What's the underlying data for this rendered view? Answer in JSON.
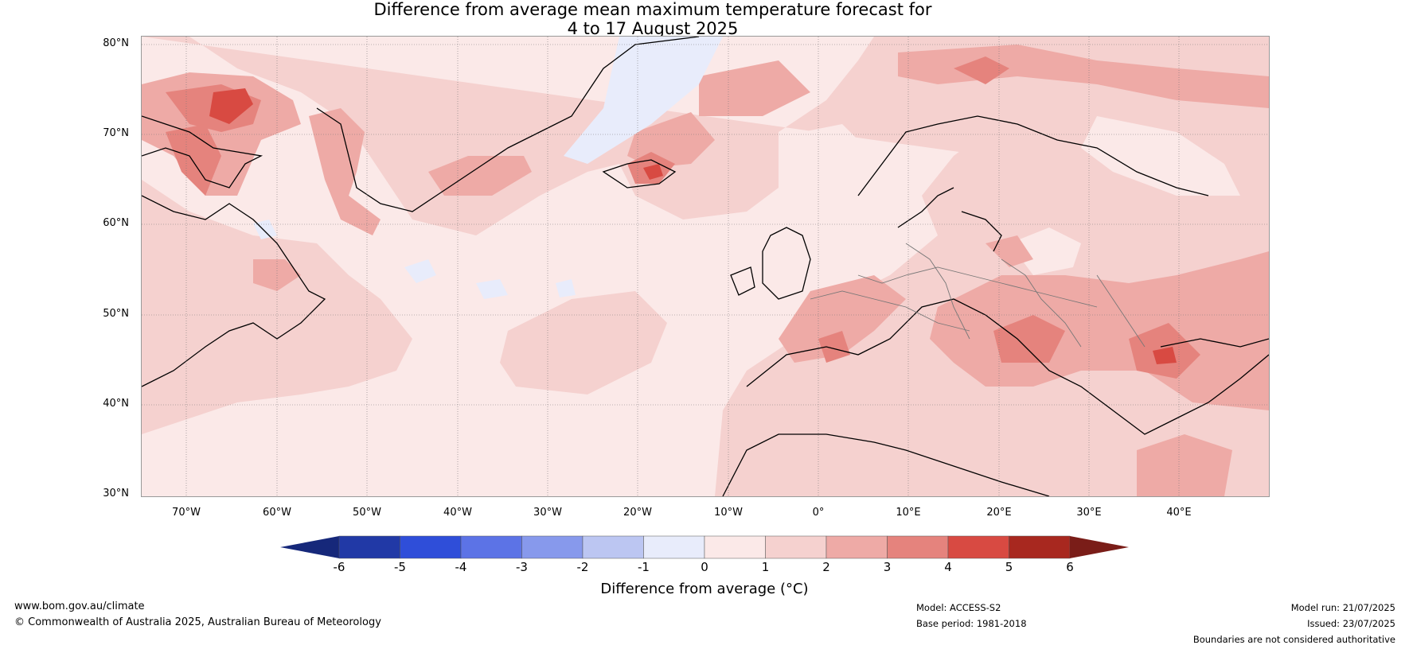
{
  "title_line1": "Difference from average mean maximum temperature forecast for",
  "title_line2": "4 to 17 August 2025",
  "lat_labels": [
    "80°N",
    "70°N",
    "60°N",
    "50°N",
    "40°N",
    "30°N"
  ],
  "lon_labels": [
    "70°W",
    "60°W",
    "50°W",
    "40°W",
    "30°W",
    "20°W",
    "10°W",
    "0°",
    "10°E",
    "20°E",
    "30°E",
    "40°E"
  ],
  "colorbar": {
    "ticks": [
      "-6",
      "-5",
      "-4",
      "-3",
      "-2",
      "-1",
      "0",
      "1",
      "2",
      "3",
      "4",
      "5",
      "6"
    ],
    "label": "Difference from average (°C)",
    "low_extend_color": "#16287a",
    "high_extend_color": "#7a1d18",
    "colors": [
      "#2139a6",
      "#2f4ed9",
      "#5c73e6",
      "#8799ec",
      "#bcc6f2",
      "#e8ecfb",
      "#fbe9e8",
      "#f5d1cf",
      "#eeaaa6",
      "#e5837d",
      "#d84a42",
      "#a8281f"
    ]
  },
  "footer": {
    "website": "www.bom.gov.au/climate",
    "copyright": "© Commonwealth of Australia 2025, Australian Bureau of Meteorology",
    "model": "Model: ACCESS-S2",
    "base_period": "Base period: 1981-2018",
    "model_run": "Model run: 21/07/2025",
    "issued": "Issued: 23/07/2025",
    "disclaimer": "Boundaries are not considered authoritative"
  }
}
